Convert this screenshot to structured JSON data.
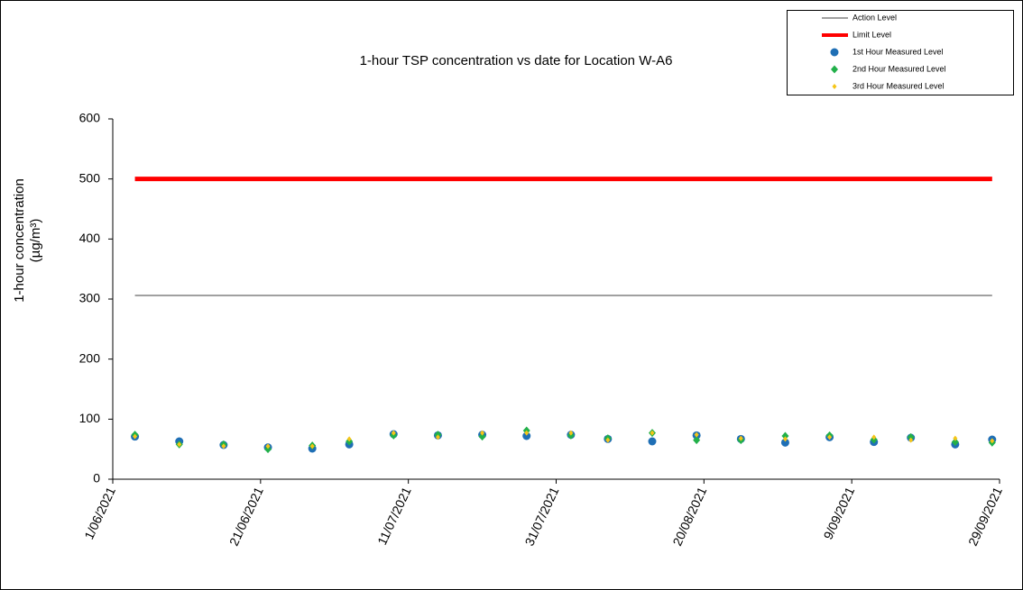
{
  "chart_data": {
    "type": "scatter",
    "title": "1-hour TSP concentration vs date for Location  W-A6",
    "y_label": [
      "1-hour concentration",
      "(µg/m³)"
    ],
    "x": [
      "4/06/2021",
      "10/06/2021",
      "16/06/2021",
      "22/06/2021",
      "28/06/2021",
      "3/07/2021",
      "9/07/2021",
      "15/07/2021",
      "21/07/2021",
      "27/07/2021",
      "2/08/2021",
      "7/08/2021",
      "13/08/2021",
      "19/08/2021",
      "25/08/2021",
      "31/08/2021",
      "6/09/2021",
      "12/09/2021",
      "17/09/2021",
      "23/09/2021",
      "28/09/2021"
    ],
    "xlim": [
      "1/06/2021",
      "29/09/2021"
    ],
    "xticks": [
      "1/06/2021",
      "21/06/2021",
      "11/07/2021",
      "31/07/2021",
      "20/08/2021",
      "9/09/2021",
      "29/09/2021"
    ],
    "ylim": [
      0,
      600
    ],
    "yticks": [
      0,
      100,
      200,
      300,
      400,
      500,
      600
    ],
    "series": [
      {
        "name": "Action Level",
        "type": "line",
        "color": "#808080",
        "x": [
          "4/06/2021",
          "28/09/2021"
        ],
        "values": [
          306,
          306
        ]
      },
      {
        "name": "Limit Level",
        "type": "line",
        "color": "#ff0000",
        "x": [
          "4/06/2021",
          "28/09/2021"
        ],
        "values": [
          500,
          500
        ]
      },
      {
        "name": "1st Hour Measured Level",
        "type": "scatter",
        "marker": "circle",
        "color": "#1f6fb5",
        "values": [
          71,
          63,
          57,
          53,
          51,
          58,
          75,
          73,
          74,
          72,
          74,
          67,
          63,
          73,
          67,
          61,
          70,
          62,
          69,
          58,
          66
        ]
      },
      {
        "name": "2nd Hour Measured Level",
        "type": "scatter",
        "marker": "diamond",
        "color": "#22b04a",
        "values": [
          74,
          58,
          58,
          50,
          56,
          63,
          73,
          74,
          71,
          81,
          73,
          68,
          77,
          65,
          65,
          72,
          73,
          66,
          70,
          62,
          61
        ]
      },
      {
        "name": "3rd Hour Measured Level",
        "type": "scatter",
        "marker": "dot",
        "color": "#f5c518",
        "values": [
          71,
          58,
          55,
          55,
          55,
          67,
          77,
          70,
          77,
          77,
          77,
          65,
          77,
          74,
          68,
          67,
          70,
          70,
          65,
          68,
          64
        ]
      }
    ]
  }
}
